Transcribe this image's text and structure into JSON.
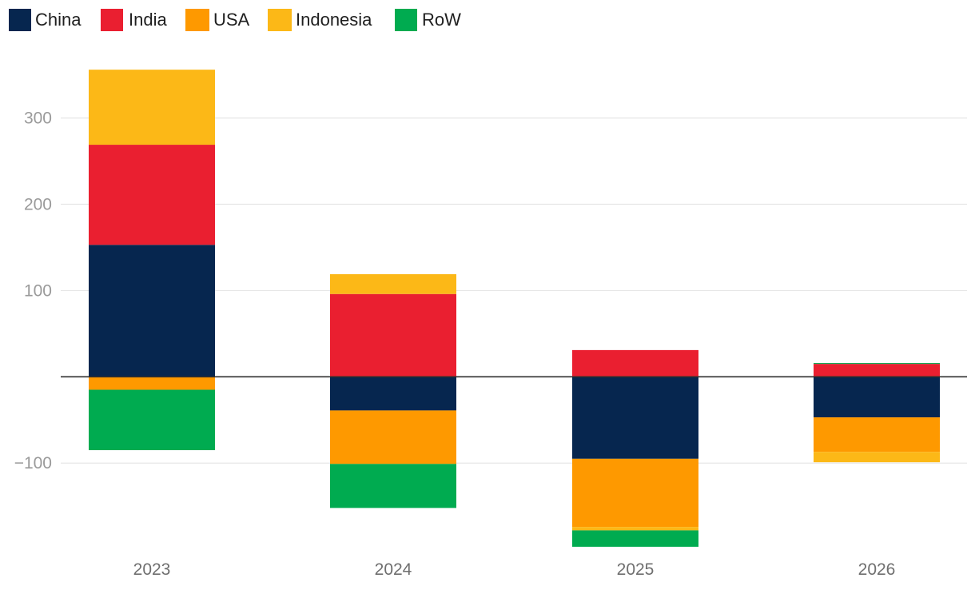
{
  "chart_data": {
    "type": "bar",
    "stacked": true,
    "title": "",
    "xlabel": "",
    "ylabel": "",
    "categories": [
      "2023",
      "2024",
      "2025",
      "2026"
    ],
    "series": [
      {
        "name": "China",
        "color": "#06264f",
        "values": [
          153,
          -39,
          -95,
          -47
        ]
      },
      {
        "name": "India",
        "color": "#ea1f30",
        "values": [
          116,
          96,
          31,
          15
        ]
      },
      {
        "name": "USA",
        "color": "#fe9900",
        "values": [
          -15,
          -62,
          -79,
          -40
        ]
      },
      {
        "name": "Indonesia",
        "color": "#fcb817",
        "values": [
          87,
          23,
          -4,
          -12
        ]
      },
      {
        "name": "RoW",
        "color": "#00ab50",
        "values": [
          -70,
          -51,
          -19,
          1
        ]
      }
    ],
    "yticks": [
      {
        "value": 300,
        "label": "300"
      },
      {
        "value": 200,
        "label": "200"
      },
      {
        "value": 100,
        "label": "100"
      },
      {
        "value": 0,
        "label": ""
      },
      {
        "value": -100,
        "label": "−100"
      }
    ],
    "ylim": [
      -198,
      358
    ],
    "legend_position": "top-left",
    "grid": true
  }
}
